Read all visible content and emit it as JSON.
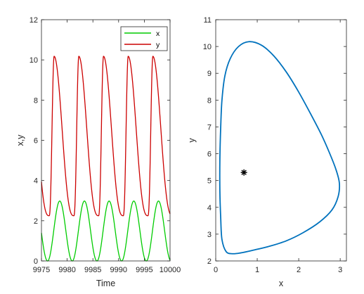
{
  "chart_data": [
    {
      "type": "line",
      "xlabel": "Time",
      "ylabel": "x,y",
      "xlim": [
        9975,
        10000
      ],
      "ylim": [
        0,
        12
      ],
      "xticks": [
        "9975",
        "9980",
        "9985",
        "9990",
        "9995",
        "10000"
      ],
      "yticks": [
        "0",
        "2",
        "4",
        "6",
        "8",
        "10",
        "12"
      ],
      "grid": false,
      "legend_position": "top-right",
      "period": 4.8,
      "series": [
        {
          "name": "x",
          "color": "#00cc00",
          "min": 0.0,
          "max": 2.98,
          "peak_times": [
            9978.55,
            9983.35,
            9988.15,
            9992.95,
            9997.75
          ],
          "trough_times": [
            9976.2,
            9981.0,
            9985.8,
            9990.6,
            9995.4
          ],
          "start_value": 0.5,
          "end_value": 2.9
        },
        {
          "name": "y",
          "color": "#cc0000",
          "min": 2.25,
          "max": 10.18,
          "peak_times": [
            9977.45,
            9982.25,
            9987.05,
            9991.85,
            9996.65
          ],
          "trough_times": [
            9976.5,
            9981.3,
            9986.1,
            9990.9,
            9995.7
          ],
          "start_value": 2.25,
          "end_value": 6.0
        }
      ]
    },
    {
      "type": "line",
      "xlabel": "x",
      "ylabel": "y",
      "xlim": [
        0,
        3.15
      ],
      "ylim": [
        2,
        11
      ],
      "xticks": [
        "0",
        "1",
        "2",
        "3"
      ],
      "yticks": [
        "2",
        "3",
        "4",
        "5",
        "6",
        "7",
        "8",
        "9",
        "10",
        "11"
      ],
      "grid": false,
      "series": [
        {
          "color": "#0072bd",
          "x": [
            0.8,
            1.1,
            1.4,
            1.7,
            2.0,
            2.3,
            2.55,
            2.75,
            2.9,
            2.98,
            2.95,
            2.8,
            2.5,
            2.1,
            1.7,
            1.3,
            0.9,
            0.6,
            0.4,
            0.25,
            0.15,
            0.12,
            0.1,
            0.1,
            0.12,
            0.15,
            0.22,
            0.35,
            0.55,
            0.8
          ],
          "y": [
            10.18,
            10.05,
            9.65,
            9.05,
            8.3,
            7.45,
            6.7,
            6.0,
            5.4,
            4.9,
            4.4,
            3.9,
            3.45,
            3.05,
            2.75,
            2.55,
            2.4,
            2.3,
            2.27,
            2.35,
            2.8,
            3.6,
            4.6,
            5.8,
            7.0,
            8.0,
            8.9,
            9.55,
            10.0,
            10.18
          ]
        }
      ],
      "annotations": [
        {
          "type": "marker",
          "symbol": "*",
          "x": 0.68,
          "y": 5.3,
          "color": "#000000"
        }
      ]
    }
  ]
}
